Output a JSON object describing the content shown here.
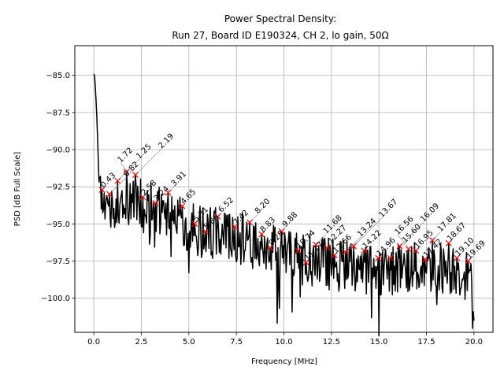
{
  "chart_data": {
    "type": "line",
    "title": "Power Spectral Density:",
    "subtitle": "Run 27, Board ID E190324, CH 2, lo gain, 50Ω",
    "xlabel": "Frequency [MHz]",
    "ylabel": "PSD [dB Full Scale]",
    "xlim": [
      -1.0,
      21.0
    ],
    "ylim": [
      -102.3,
      -83.0
    ],
    "grid": true,
    "xticks": [
      0.0,
      2.5,
      5.0,
      7.5,
      10.0,
      12.5,
      15.0,
      17.5,
      20.0
    ],
    "xtick_labels": [
      "0.0",
      "2.5",
      "5.0",
      "7.5",
      "10.0",
      "12.5",
      "15.0",
      "17.5",
      "20.0"
    ],
    "yticks": [
      -85.0,
      -87.5,
      -90.0,
      -92.5,
      -95.0,
      -97.5,
      -100.0
    ],
    "ytick_labels": [
      "−85.0",
      "−87.5",
      "−90.0",
      "−92.5",
      "−95.0",
      "−97.5",
      "−100.0"
    ],
    "line_color": "#000000",
    "marker_color": "#ff0000",
    "trend": {
      "x": [
        0.0,
        0.05,
        0.15,
        0.3,
        1.0,
        2.0,
        3.0,
        4.0,
        5.0,
        6.0,
        7.0,
        8.0,
        9.0,
        10.0,
        11.0,
        12.0,
        13.0,
        14.0,
        15.0,
        16.0,
        17.0,
        18.0,
        19.0,
        19.8,
        20.0
      ],
      "y": [
        -84.9,
        -85.1,
        -87.5,
        -93.2,
        -93.6,
        -93.5,
        -94.0,
        -94.6,
        -95.2,
        -95.6,
        -95.8,
        -96.0,
        -96.6,
        -97.0,
        -97.4,
        -97.6,
        -97.8,
        -97.9,
        -98.0,
        -98.0,
        -98.0,
        -97.9,
        -98.0,
        -98.5,
        -101.5
      ]
    },
    "peaks": [
      {
        "x": 0.43,
        "y": -92.7,
        "label": "0.43"
      },
      {
        "x": 0.82,
        "y": -93.0,
        "label": "0.82"
      },
      {
        "x": 1.25,
        "y": -92.1,
        "label": "1.25"
      },
      {
        "x": 1.72,
        "y": -91.5,
        "label": "1.72"
      },
      {
        "x": 2.19,
        "y": -91.7,
        "label": "2.19"
      },
      {
        "x": 2.58,
        "y": -93.2,
        "label": "2.58"
      },
      {
        "x": 3.24,
        "y": -93.6,
        "label": "3.24"
      },
      {
        "x": 3.91,
        "y": -92.9,
        "label": "3.91"
      },
      {
        "x": 4.65,
        "y": -93.8,
        "label": "4.65"
      },
      {
        "x": 5.31,
        "y": -95.0,
        "label": "5.31"
      },
      {
        "x": 5.86,
        "y": -95.5,
        "label": "5.86"
      },
      {
        "x": 6.52,
        "y": -94.5,
        "label": "6.52"
      },
      {
        "x": 7.42,
        "y": -95.2,
        "label": "7.42"
      },
      {
        "x": 8.2,
        "y": -94.9,
        "label": "8.20"
      },
      {
        "x": 8.83,
        "y": -95.7,
        "label": "8.83"
      },
      {
        "x": 9.28,
        "y": -96.6,
        "label": "9.28"
      },
      {
        "x": 9.88,
        "y": -95.5,
        "label": "9.88"
      },
      {
        "x": 10.74,
        "y": -96.8,
        "label": "10.74"
      },
      {
        "x": 11.17,
        "y": -97.6,
        "label": "11.17"
      },
      {
        "x": 11.68,
        "y": -96.4,
        "label": "11.68"
      },
      {
        "x": 12.27,
        "y": -96.6,
        "label": "12.27"
      },
      {
        "x": 12.66,
        "y": -97.1,
        "label": "12.66"
      },
      {
        "x": 13.24,
        "y": -96.9,
        "label": "13.24"
      },
      {
        "x": 13.67,
        "y": -96.5,
        "label": "13.67"
      },
      {
        "x": 14.22,
        "y": -96.8,
        "label": "14.22"
      },
      {
        "x": 14.96,
        "y": -97.3,
        "label": "14.96"
      },
      {
        "x": 15.6,
        "y": -97.3,
        "label": "15.60"
      },
      {
        "x": 16.09,
        "y": -96.5,
        "label": "16.09"
      },
      {
        "x": 16.56,
        "y": -96.7,
        "label": "16.56"
      },
      {
        "x": 16.95,
        "y": -96.8,
        "label": "16.95"
      },
      {
        "x": 17.42,
        "y": -97.4,
        "label": "17.42"
      },
      {
        "x": 17.81,
        "y": -96.1,
        "label": "17.81"
      },
      {
        "x": 18.67,
        "y": -96.3,
        "label": "18.67"
      },
      {
        "x": 19.1,
        "y": -97.3,
        "label": "19.10"
      },
      {
        "x": 19.69,
        "y": -97.5,
        "label": "19.69"
      }
    ]
  }
}
